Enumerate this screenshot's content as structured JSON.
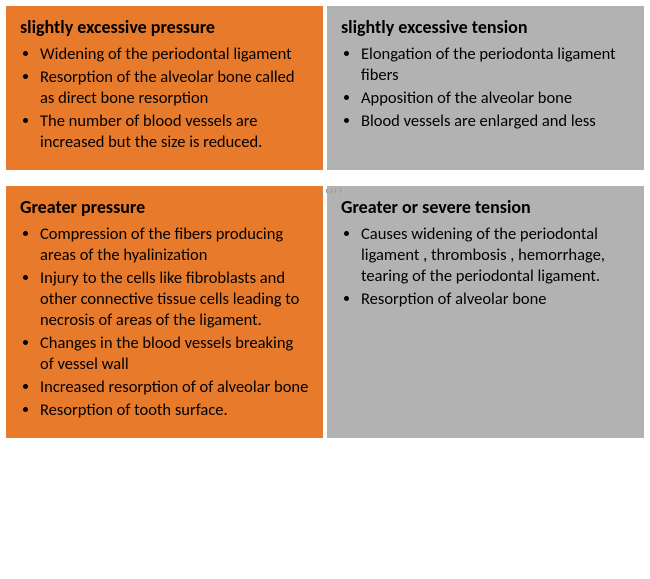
{
  "colors": {
    "orange": "#e87a2c",
    "gray": "#b2b2b2",
    "text": "#000000",
    "background": "#ffffff"
  },
  "cells": {
    "top_left": {
      "title": "slightly excessive pressure",
      "items": [
        " Widening of the periodontal ligament",
        "Resorption of the alveolar bone called as direct bone resorption",
        "The number of blood vessels are increased but the size is reduced."
      ],
      "bg": "#e87a2c"
    },
    "top_right": {
      "title": "slightly excessive tension",
      "items": [
        "Elongation of the periodonta ligament fibers",
        "Apposition of the alveolar bone",
        "Blood vessels are enlarged and less"
      ],
      "bg": "#b2b2b2"
    },
    "bottom_left": {
      "title": "Greater pressure",
      "items": [
        "Compression  of the fibers producing areas of the hyalinization",
        "Injury to the cells like fibroblasts and other connective tissue cells leading to necrosis of areas of the ligament.",
        "Changes in the blood vessels breaking of vessel wall",
        "Increased resorption of  of alveolar bone",
        "Resorption of tooth surface."
      ],
      "bg": "#e87a2c"
    },
    "bottom_right": {
      "title": "Greater or severe tension",
      "items": [
        "Causes widening of the periodontal ligament , thrombosis , hemorrhage, tearing of the periodontal ligament.",
        "Resorption of alveolar bone"
      ],
      "bg": "#b2b2b2"
    }
  }
}
